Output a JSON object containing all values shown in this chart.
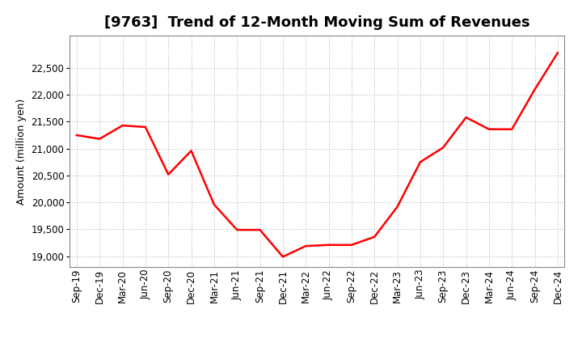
{
  "title": "[9763]  Trend of 12-Month Moving Sum of Revenues",
  "ylabel": "Amount (million yen)",
  "line_color": "#ff0000",
  "line_width": 1.8,
  "background_color": "#ffffff",
  "grid_color": "#aaaaaa",
  "x_labels": [
    "Sep-19",
    "Dec-19",
    "Mar-20",
    "Jun-20",
    "Sep-20",
    "Dec-20",
    "Mar-21",
    "Jun-21",
    "Sep-21",
    "Dec-21",
    "Mar-22",
    "Jun-22",
    "Sep-22",
    "Dec-22",
    "Mar-23",
    "Jun-23",
    "Sep-23",
    "Dec-23",
    "Mar-24",
    "Jun-24",
    "Sep-24",
    "Dec-24"
  ],
  "values": [
    21250,
    21180,
    21430,
    21400,
    20520,
    20960,
    19960,
    19490,
    19490,
    18990,
    19190,
    19210,
    19210,
    19360,
    19920,
    20750,
    21020,
    21580,
    21360,
    21360,
    22100,
    22780
  ],
  "ylim": [
    18800,
    23100
  ],
  "yticks": [
    19000,
    19500,
    20000,
    20500,
    21000,
    21500,
    22000,
    22500
  ],
  "title_fontsize": 13,
  "axis_fontsize": 9,
  "tick_fontsize": 8.5
}
